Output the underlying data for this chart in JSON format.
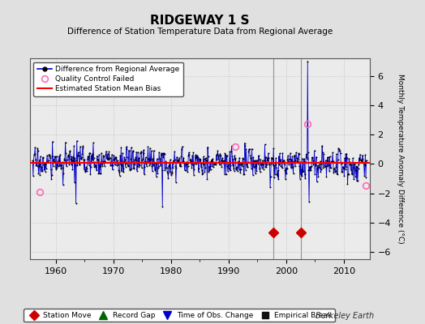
{
  "title": "RIDGEWAY 1 S",
  "subtitle": "Difference of Station Temperature Data from Regional Average",
  "ylabel": "Monthly Temperature Anomaly Difference (°C)",
  "xlim": [
    1955.5,
    2014.5
  ],
  "ylim": [
    -6.5,
    7.2
  ],
  "yticks": [
    -6,
    -4,
    -2,
    0,
    2,
    4,
    6
  ],
  "xticks": [
    1960,
    1970,
    1980,
    1990,
    2000,
    2010
  ],
  "bias_level": 0.08,
  "station_moves": [
    1997.7,
    2002.6
  ],
  "station_moves_y": -4.7,
  "time_obs_vlines": [
    1997.7,
    2002.6
  ],
  "spike_year": 2003.7,
  "spike_value": 7.0,
  "spike_neg_year": 2004.0,
  "spike_neg_value": -2.6,
  "bg_color": "#e0e0e0",
  "plot_bg_color": "#ebebeb",
  "line_color": "#0000cc",
  "bias_color": "#ff0000",
  "marker_color": "#000000",
  "station_move_color": "#cc0000",
  "time_obs_color": "#0000cc",
  "record_gap_color": "#006600",
  "empirical_break_color": "#111111",
  "qc_circle_color": "#ff69b4",
  "legend1_items": [
    "Difference from Regional Average",
    "Quality Control Failed",
    "Estimated Station Mean Bias"
  ],
  "legend2_items": [
    "Station Move",
    "Record Gap",
    "Time of Obs. Change",
    "Empirical Break"
  ],
  "random_seed": 17,
  "start_year": 1956.0,
  "end_year": 2013.9,
  "n_points": 695
}
